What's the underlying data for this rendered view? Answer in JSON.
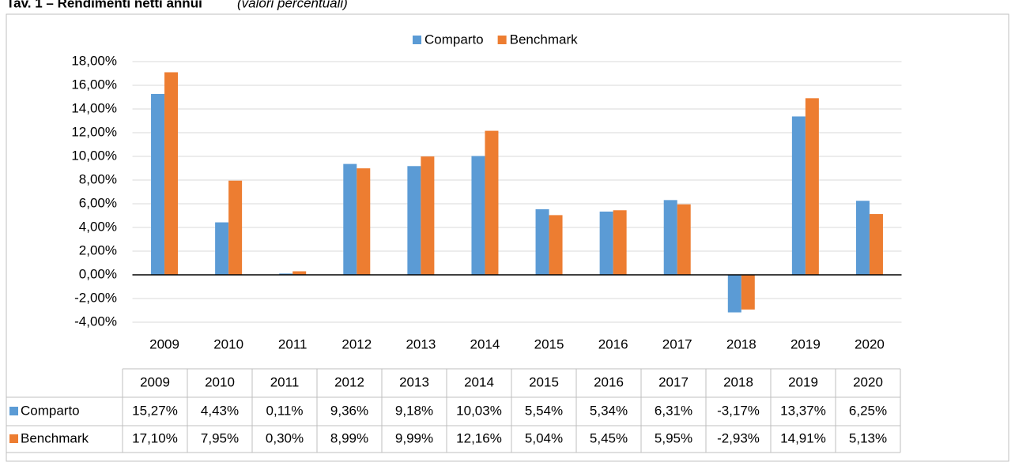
{
  "chart_data": {
    "type": "bar",
    "title": "Tav. 1 – Rendimenti netti annui",
    "subtitle": "(valori percentuali)",
    "categories": [
      "2009",
      "2010",
      "2011",
      "2012",
      "2013",
      "2014",
      "2015",
      "2016",
      "2017",
      "2018",
      "2019",
      "2020"
    ],
    "series": [
      {
        "name": "Comparto",
        "color": "#5b9bd5",
        "values": [
          15.27,
          4.43,
          0.11,
          9.36,
          9.18,
          10.03,
          5.54,
          5.34,
          6.31,
          -3.17,
          13.37,
          6.25
        ],
        "value_labels": [
          "15,27%",
          "4,43%",
          "0,11%",
          "9,36%",
          "9,18%",
          "10,03%",
          "5,54%",
          "5,34%",
          "6,31%",
          "-3,17%",
          "13,37%",
          "6,25%"
        ]
      },
      {
        "name": "Benchmark",
        "color": "#ed7d31",
        "values": [
          17.1,
          7.95,
          0.3,
          8.99,
          9.99,
          12.16,
          5.04,
          5.45,
          5.95,
          -2.93,
          14.91,
          5.13
        ],
        "value_labels": [
          "17,10%",
          "7,95%",
          "0,30%",
          "8,99%",
          "9,99%",
          "12,16%",
          "5,04%",
          "5,45%",
          "5,95%",
          "-2,93%",
          "14,91%",
          "5,13%"
        ]
      }
    ],
    "ylim": [
      -4,
      18
    ],
    "yticks": [
      {
        "value": -4,
        "label": "-4,00%"
      },
      {
        "value": -2,
        "label": "-2,00%"
      },
      {
        "value": 0,
        "label": "0,00%"
      },
      {
        "value": 2,
        "label": "2,00%"
      },
      {
        "value": 4,
        "label": "4,00%"
      },
      {
        "value": 6,
        "label": "6,00%"
      },
      {
        "value": 8,
        "label": "8,00%"
      },
      {
        "value": 10,
        "label": "10,00%"
      },
      {
        "value": 12,
        "label": "12,00%"
      },
      {
        "value": 14,
        "label": "14,00%"
      },
      {
        "value": 16,
        "label": "16,00%"
      },
      {
        "value": 18,
        "label": "18,00%"
      }
    ],
    "grid": true,
    "legend": "top"
  }
}
